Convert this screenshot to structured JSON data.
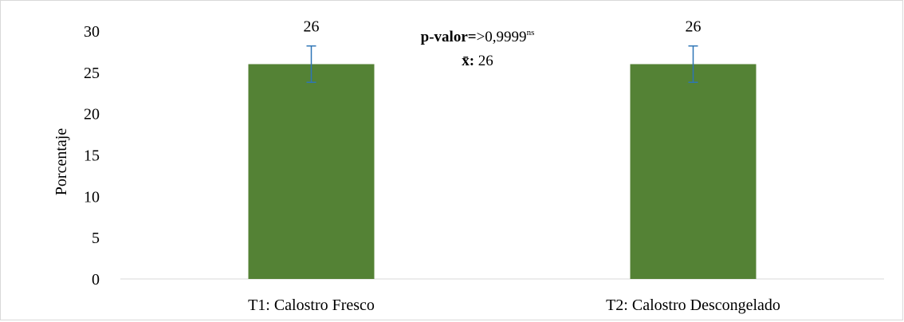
{
  "chart_data": {
    "type": "bar",
    "categories": [
      "T1: Calostro Fresco",
      "T2: Calostro Descongelado"
    ],
    "series": [
      {
        "values": [
          26,
          26
        ],
        "error": [
          2.2,
          2.2
        ],
        "color": "#548235",
        "error_color": "#2e75b6"
      }
    ],
    "data_labels": [
      "26",
      "26"
    ],
    "ylabel": "Porcentaje",
    "ylim": [
      0,
      30
    ],
    "yticks": [
      0,
      5,
      10,
      15,
      20,
      25,
      30
    ],
    "grid": false,
    "annotation": {
      "pvalue_label": "p-valor=",
      "pvalue_value": ">0,9999",
      "pvalue_sup": "ns",
      "mean_label": "x̄:",
      "mean_value": " 26"
    }
  }
}
